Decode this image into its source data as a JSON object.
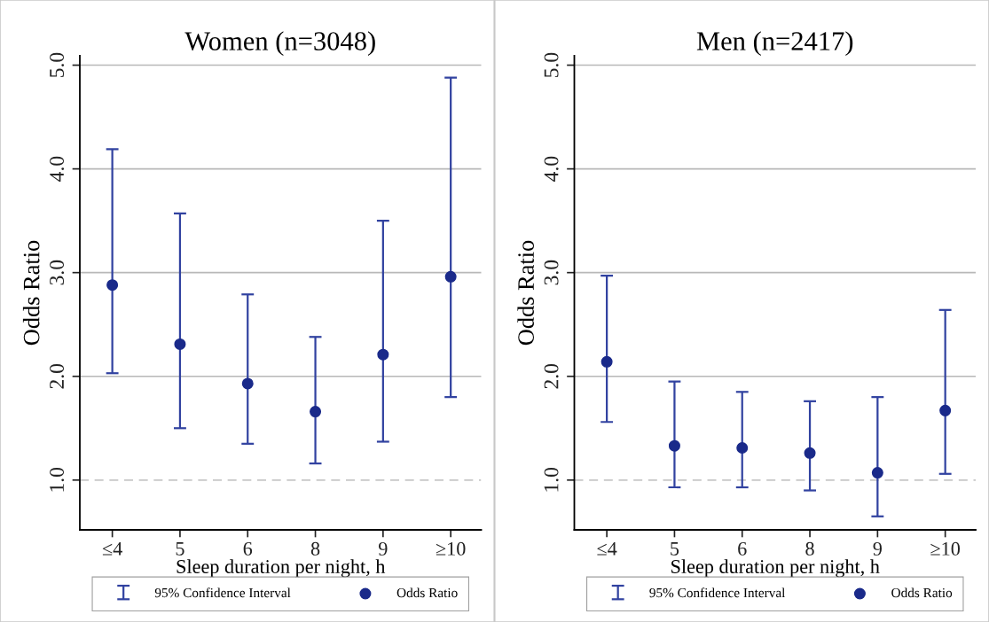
{
  "chart_data": [
    {
      "type": "scatter",
      "title": "Women (n=3048)",
      "xlabel": "Sleep duration per night, h",
      "ylabel": "Odds Ratio",
      "categories": [
        "≤4",
        "5",
        "6",
        "8",
        "9",
        "≥10"
      ],
      "ylim": [
        0.52,
        5.09
      ],
      "yticks": [
        {
          "value": 1,
          "label": "1.0"
        },
        {
          "value": 2,
          "label": "2.0"
        },
        {
          "value": 3,
          "label": "3.0"
        },
        {
          "value": 4,
          "label": "4.0"
        },
        {
          "value": 5,
          "label": "5.0"
        }
      ],
      "grid": "y",
      "legend": "bottom",
      "marker": "circle",
      "ref_lines": [
        {
          "axis": "y",
          "value": 1,
          "color": "#c8c8c8",
          "line_style": "dashed"
        }
      ],
      "series": [
        {
          "name": "95% Confidence Interval",
          "color": "#3142a0",
          "values": [
            null,
            null,
            null,
            null,
            null,
            null
          ]
        },
        {
          "name": "Odds Ratio",
          "color": "#1a2a8a",
          "values": [
            2.88,
            2.31,
            1.93,
            1.66,
            2.21,
            2.96
          ],
          "errors": [
            [
              2.03,
              4.19
            ],
            [
              1.5,
              3.57
            ],
            [
              1.35,
              2.79
            ],
            [
              1.16,
              2.38
            ],
            [
              1.37,
              3.5
            ],
            [
              1.8,
              4.88
            ]
          ]
        }
      ]
    },
    {
      "type": "scatter",
      "title": "Men (n=2417)",
      "xlabel": "Sleep duration per night, h",
      "ylabel": "Odds Ratio",
      "categories": [
        "≤4",
        "5",
        "6",
        "8",
        "9",
        "≥10"
      ],
      "ylim": [
        0.52,
        5.09
      ],
      "yticks": [
        {
          "value": 1,
          "label": "1.0"
        },
        {
          "value": 2,
          "label": "2.0"
        },
        {
          "value": 3,
          "label": "3.0"
        },
        {
          "value": 4,
          "label": "4.0"
        },
        {
          "value": 5,
          "label": "5.0"
        }
      ],
      "grid": "y",
      "legend": "bottom",
      "marker": "circle",
      "ref_lines": [
        {
          "axis": "y",
          "value": 1,
          "color": "#c8c8c8",
          "line_style": "dashed"
        }
      ],
      "series": [
        {
          "name": "95% Confidence Interval",
          "color": "#3142a0",
          "values": [
            null,
            null,
            null,
            null,
            null,
            null
          ]
        },
        {
          "name": "Odds Ratio",
          "color": "#1a2a8a",
          "values": [
            2.14,
            1.33,
            1.31,
            1.26,
            1.07,
            1.67
          ],
          "errors": [
            [
              1.56,
              2.97
            ],
            [
              0.93,
              1.95
            ],
            [
              0.93,
              1.85
            ],
            [
              0.9,
              1.76
            ],
            [
              0.65,
              1.8
            ],
            [
              1.06,
              2.64
            ]
          ]
        }
      ]
    }
  ]
}
